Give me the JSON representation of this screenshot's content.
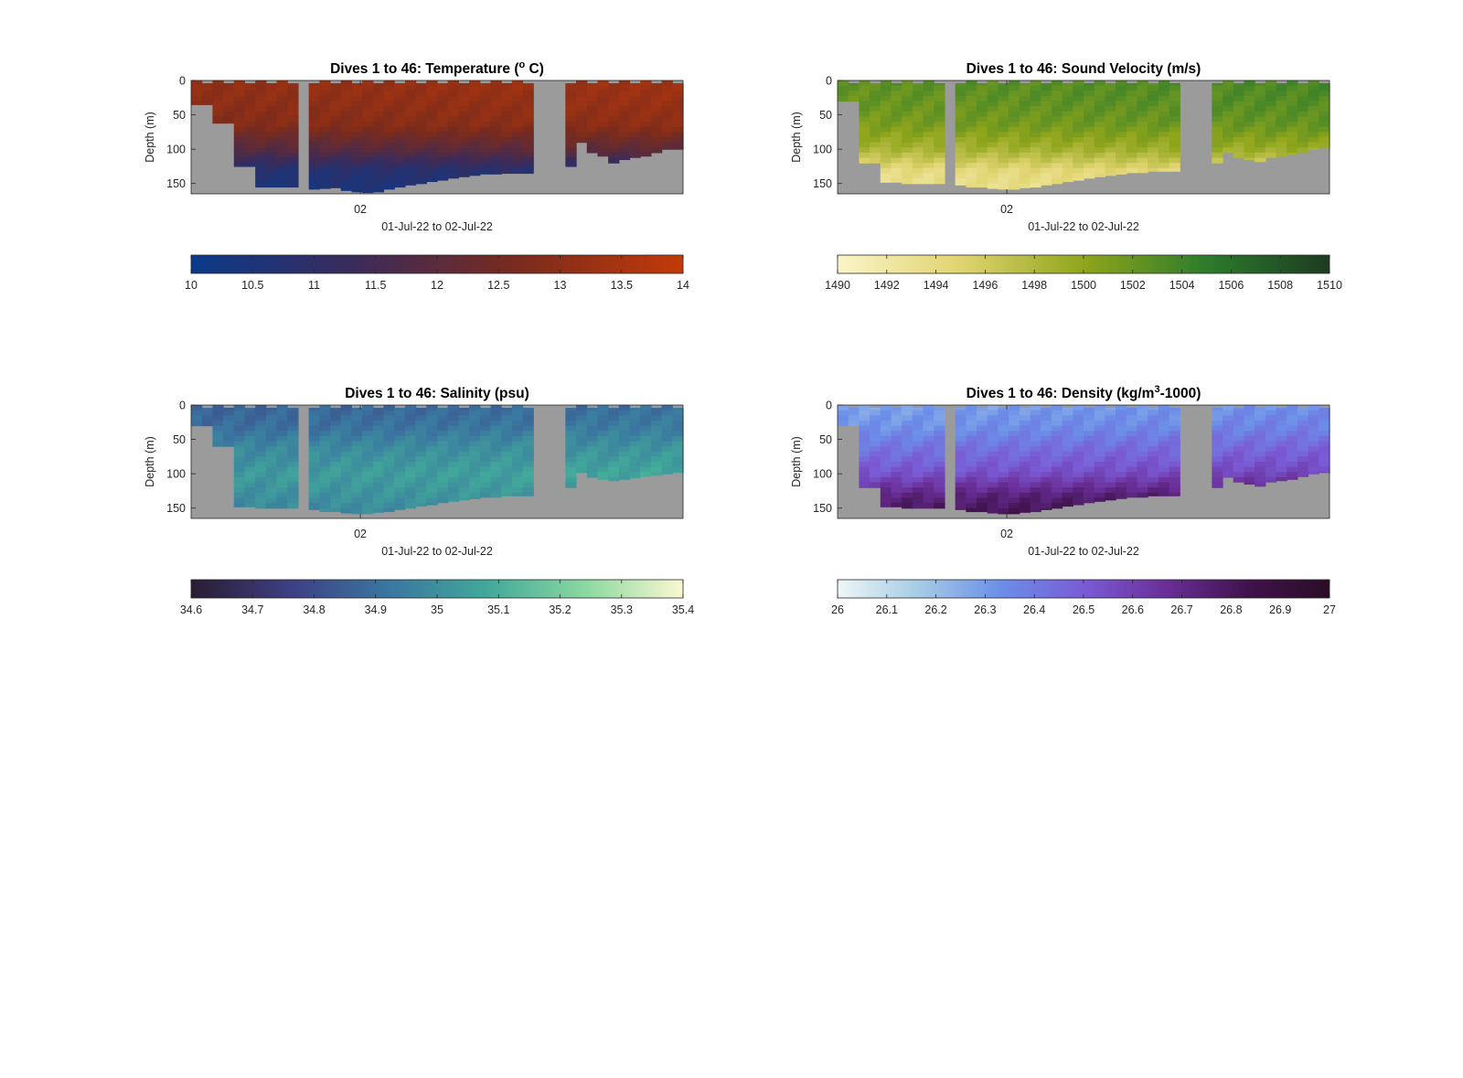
{
  "chart_data": [
    {
      "type": "heatmap",
      "title_prefix": "Dives 1 to 46: Temperature (",
      "title_super": "o",
      "title_suffix": " C)",
      "xlabel": "01-Jul-22 to 02-Jul-22",
      "ylabel": "Depth (m)",
      "x_ticks": [
        "02"
      ],
      "y_ticks": [
        "0",
        "50",
        "100",
        "150"
      ],
      "ylim": [
        0,
        165
      ],
      "color_range": [
        10,
        14
      ],
      "colorbar_ticks": [
        "10",
        "10.5",
        "11",
        "11.5",
        "12",
        "12.5",
        "13",
        "13.5",
        "14"
      ],
      "colormap": [
        "#0a3a8a",
        "#3b2b5a",
        "#7a2b1c",
        "#c23a08"
      ],
      "no_data_color": "#9b9b9b",
      "dive_max_depth_m": [
        35,
        35,
        62,
        62,
        125,
        125,
        155,
        155,
        155,
        155,
        0,
        158,
        157,
        156,
        160,
        162,
        163,
        162,
        158,
        155,
        152,
        150,
        147,
        145,
        142,
        140,
        138,
        136,
        136,
        135,
        135,
        135,
        0,
        0,
        0,
        125,
        90,
        105,
        110,
        120,
        115,
        112,
        110,
        105,
        100,
        100
      ],
      "profile_values": [
        13.2,
        13.1,
        12.9,
        12.0,
        10.8,
        10.5
      ]
    },
    {
      "type": "heatmap",
      "title_prefix": "Dives 1 to 46: Sound Velocity (m/s)",
      "title_super": "",
      "title_suffix": "",
      "xlabel": "01-Jul-22 to 02-Jul-22",
      "ylabel": "Depth (m)",
      "x_ticks": [
        "02"
      ],
      "y_ticks": [
        "0",
        "50",
        "100",
        "150"
      ],
      "ylim": [
        0,
        165
      ],
      "color_range": [
        1490,
        1510
      ],
      "colorbar_ticks": [
        "1490",
        "1492",
        "1494",
        "1496",
        "1498",
        "1500",
        "1502",
        "1504",
        "1506",
        "1508",
        "1510"
      ],
      "colormap": [
        "#fbf5c8",
        "#e0d470",
        "#8fa51b",
        "#2c7c2c",
        "#1d3b22"
      ],
      "no_data_color": "#9b9b9b",
      "dive_max_depth_m": [
        30,
        30,
        120,
        120,
        148,
        148,
        150,
        150,
        150,
        150,
        0,
        152,
        155,
        155,
        157,
        158,
        158,
        156,
        155,
        152,
        150,
        147,
        145,
        142,
        140,
        138,
        136,
        134,
        134,
        132,
        132,
        132,
        0,
        0,
        0,
        120,
        105,
        112,
        115,
        118,
        112,
        110,
        108,
        104,
        100,
        98
      ],
      "profile_values": [
        1503.0,
        1502.5,
        1501.5,
        1499.0,
        1494.5,
        1493.5
      ]
    },
    {
      "type": "heatmap",
      "title_prefix": "Dives 1 to 46: Salinity (psu)",
      "title_super": "",
      "title_suffix": "",
      "xlabel": "01-Jul-22 to 02-Jul-22",
      "ylabel": "Depth (m)",
      "x_ticks": [
        "02"
      ],
      "y_ticks": [
        "0",
        "50",
        "100",
        "150"
      ],
      "ylim": [
        0,
        165
      ],
      "color_range": [
        34.6,
        35.4
      ],
      "colorbar_ticks": [
        "34.6",
        "34.7",
        "34.8",
        "34.9",
        "35",
        "35.1",
        "35.2",
        "35.3",
        "35.4"
      ],
      "colormap": [
        "#2a1c33",
        "#3d3f82",
        "#3a76a0",
        "#41a89a",
        "#8ad8a0",
        "#fbf8d0"
      ],
      "no_data_color": "#9b9b9b",
      "dive_max_depth_m": [
        30,
        30,
        60,
        60,
        148,
        148,
        150,
        150,
        150,
        150,
        0,
        152,
        155,
        155,
        157,
        158,
        158,
        156,
        155,
        152,
        150,
        147,
        145,
        142,
        140,
        138,
        136,
        134,
        134,
        132,
        132,
        132,
        0,
        0,
        0,
        120,
        98,
        105,
        108,
        110,
        108,
        106,
        104,
        102,
        100,
        98
      ],
      "profile_values": [
        34.88,
        34.92,
        35.0,
        35.05,
        35.02,
        34.98
      ]
    },
    {
      "type": "heatmap",
      "title_prefix": "Dives 1 to 46: Density (kg/m",
      "title_super": "3",
      "title_suffix": "-1000)",
      "xlabel": "01-Jul-22 to 02-Jul-22",
      "ylabel": "Depth (m)",
      "x_ticks": [
        "02"
      ],
      "y_ticks": [
        "0",
        "50",
        "100",
        "150"
      ],
      "ylim": [
        0,
        165
      ],
      "color_range": [
        26,
        27
      ],
      "colorbar_ticks": [
        "26",
        "26.1",
        "26.2",
        "26.3",
        "26.4",
        "26.5",
        "26.6",
        "26.7",
        "26.8",
        "26.9",
        "27"
      ],
      "colormap": [
        "#eef6f6",
        "#a5cbe6",
        "#6b8ee8",
        "#7a5bd6",
        "#6a2f98",
        "#40124c",
        "#2a0c26"
      ],
      "no_data_color": "#9b9b9b",
      "dive_max_depth_m": [
        30,
        30,
        120,
        120,
        148,
        148,
        150,
        150,
        150,
        150,
        0,
        152,
        155,
        155,
        157,
        158,
        158,
        156,
        155,
        152,
        150,
        147,
        145,
        142,
        140,
        138,
        136,
        134,
        134,
        132,
        132,
        132,
        0,
        0,
        0,
        120,
        105,
        112,
        115,
        118,
        112,
        110,
        108,
        104,
        100,
        98
      ],
      "profile_values": [
        26.3,
        26.35,
        26.45,
        26.55,
        26.75,
        26.85
      ]
    }
  ]
}
